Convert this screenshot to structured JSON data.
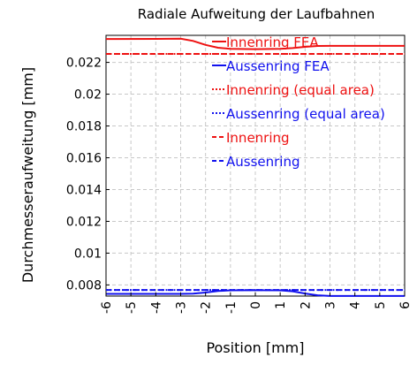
{
  "chart_data": {
    "type": "line",
    "title": "Radiale Aufweitung der Laufbahnen",
    "xlabel": "Position [mm]",
    "ylabel": "Durchmesseraufweitung [mm]",
    "xlim": [
      -6,
      6
    ],
    "ylim": [
      0.0073,
      0.0237
    ],
    "xticks": [
      -6,
      -5,
      -4,
      -3,
      -2,
      -1,
      0,
      1,
      2,
      3,
      4,
      5,
      6
    ],
    "xtick_labels": [
      "-6",
      "-5",
      "-4",
      "-3",
      "-2",
      "-1",
      "0",
      "1",
      "2",
      "3",
      "4",
      "5",
      "6"
    ],
    "yticks": [
      0.008,
      0.01,
      0.012,
      0.014,
      0.016,
      0.018,
      0.02,
      0.022
    ],
    "ytick_labels": [
      "0.008",
      "0.01",
      "0.012",
      "0.014",
      "0.016",
      "0.018",
      "0.02",
      "0.022"
    ],
    "grid": true,
    "legend_position": "top-right",
    "series": [
      {
        "name": "Innenring FEA",
        "color": "#ee1111",
        "style": "solid",
        "x": [
          -6,
          -4,
          -3,
          -2.5,
          -2,
          -1.5,
          -1,
          0,
          1,
          1.5,
          2,
          2.5,
          3,
          4,
          5,
          6
        ],
        "y": [
          0.02347,
          0.02348,
          0.02349,
          0.02335,
          0.0231,
          0.02292,
          0.02285,
          0.02283,
          0.02285,
          0.0229,
          0.02298,
          0.02303,
          0.02304,
          0.02304,
          0.02304,
          0.02304
        ]
      },
      {
        "name": "Aussenring FEA",
        "color": "#1111ee",
        "style": "solid",
        "x": [
          -6,
          -4,
          -3,
          -2.5,
          -2,
          -1.5,
          -1,
          0,
          1,
          1.5,
          2,
          2.5,
          3,
          4,
          5,
          6
        ],
        "y": [
          0.00744,
          0.00744,
          0.00744,
          0.00745,
          0.00752,
          0.00762,
          0.00766,
          0.00767,
          0.00766,
          0.0076,
          0.00746,
          0.00735,
          0.00731,
          0.00731,
          0.00731,
          0.00731
        ]
      },
      {
        "name": "Innenring (equal area)",
        "color": "#ee1111",
        "style": "dotted",
        "x": [
          -6,
          6
        ],
        "y": [
          0.02253,
          0.02253
        ]
      },
      {
        "name": "Aussenring (equal area)",
        "color": "#1111ee",
        "style": "dotted",
        "x": [
          -6,
          6
        ],
        "y": [
          0.00768,
          0.00768
        ]
      },
      {
        "name": "Innenring",
        "color": "#ee1111",
        "style": "dashed",
        "x": [
          -6,
          6
        ],
        "y": [
          0.02253,
          0.02253
        ]
      },
      {
        "name": "Aussenring",
        "color": "#1111ee",
        "style": "dashed",
        "x": [
          -6,
          6
        ],
        "y": [
          0.00768,
          0.00768
        ]
      }
    ]
  }
}
